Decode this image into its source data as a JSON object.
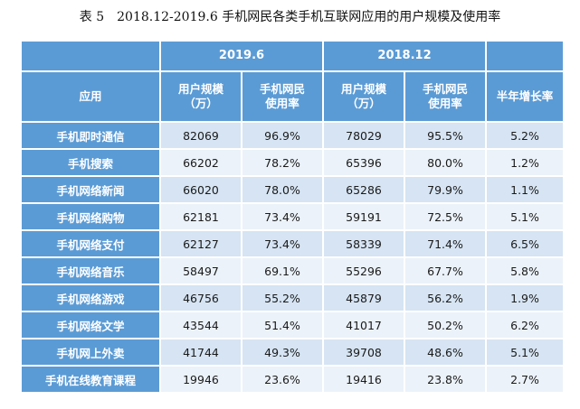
{
  "caption": {
    "label": "表 5",
    "text": "2018.12-2019.6 手机网民各类手机互联网应用的用户规模及使用率"
  },
  "header": {
    "app": "应用",
    "period_a": "2019.6",
    "period_b": "2018.12",
    "users_l1": "用户规模",
    "users_l2": "（万）",
    "rate_l1": "手机网民",
    "rate_l2": "使用率",
    "growth": "半年增长率"
  },
  "rows": [
    {
      "app": "手机即时通信",
      "users_a": "82069",
      "rate_a": "96.9%",
      "users_b": "78029",
      "rate_b": "95.5%",
      "growth": "5.2%"
    },
    {
      "app": "手机搜索",
      "users_a": "66202",
      "rate_a": "78.2%",
      "users_b": "65396",
      "rate_b": "80.0%",
      "growth": "1.2%"
    },
    {
      "app": "手机网络新闻",
      "users_a": "66020",
      "rate_a": "78.0%",
      "users_b": "65286",
      "rate_b": "79.9%",
      "growth": "1.1%"
    },
    {
      "app": "手机网络购物",
      "users_a": "62181",
      "rate_a": "73.4%",
      "users_b": "59191",
      "rate_b": "72.5%",
      "growth": "5.1%"
    },
    {
      "app": "手机网络支付",
      "users_a": "62127",
      "rate_a": "73.4%",
      "users_b": "58339",
      "rate_b": "71.4%",
      "growth": "6.5%"
    },
    {
      "app": "手机网络音乐",
      "users_a": "58497",
      "rate_a": "69.1%",
      "users_b": "55296",
      "rate_b": "67.7%",
      "growth": "5.8%"
    },
    {
      "app": "手机网络游戏",
      "users_a": "46756",
      "rate_a": "55.2%",
      "users_b": "45879",
      "rate_b": "56.2%",
      "growth": "1.9%"
    },
    {
      "app": "手机网络文学",
      "users_a": "43544",
      "rate_a": "51.4%",
      "users_b": "41017",
      "rate_b": "50.2%",
      "growth": "6.2%"
    },
    {
      "app": "手机网上外卖",
      "users_a": "41744",
      "rate_a": "49.3%",
      "users_b": "39708",
      "rate_b": "48.6%",
      "growth": "5.1%"
    },
    {
      "app": "手机在线教育课程",
      "users_a": "19946",
      "rate_a": "23.6%",
      "users_b": "19416",
      "rate_b": "23.8%",
      "growth": "2.7%"
    }
  ]
}
